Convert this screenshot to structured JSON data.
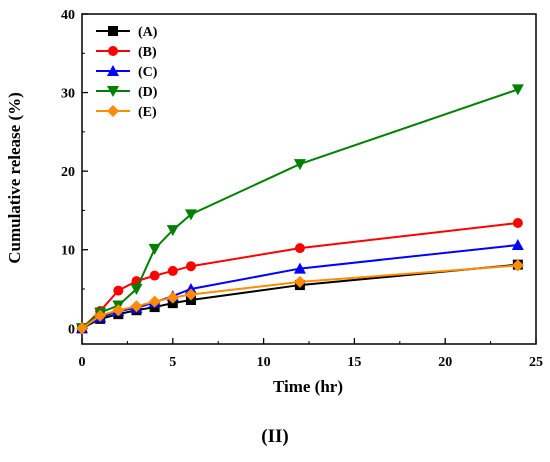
{
  "chart_data": {
    "type": "line",
    "xlabel": "Time (hr)",
    "ylabel": "Cumulative release  (%)",
    "xlim": [
      0,
      25
    ],
    "ylim": [
      -2,
      40
    ],
    "xticks": [
      0,
      5,
      10,
      15,
      20,
      25
    ],
    "yticks": [
      0,
      10,
      20,
      30,
      40
    ],
    "grid": false,
    "legend_position": "top-left",
    "series": [
      {
        "name": "(A)",
        "color": "#000000",
        "marker": "square",
        "x": [
          0,
          1,
          2,
          3,
          4,
          5,
          6,
          12,
          24
        ],
        "y": [
          0,
          1.2,
          1.8,
          2.3,
          2.7,
          3.2,
          3.6,
          5.5,
          8.1
        ]
      },
      {
        "name": "(B)",
        "color": "#ff0000",
        "marker": "circle",
        "x": [
          0,
          1,
          2,
          3,
          4,
          5,
          6,
          12,
          24
        ],
        "y": [
          0,
          2.2,
          4.8,
          6.0,
          6.7,
          7.3,
          7.9,
          10.2,
          13.4
        ]
      },
      {
        "name": "(C)",
        "color": "#0000ff",
        "marker": "triangle-up",
        "x": [
          0,
          1,
          2,
          3,
          4,
          5,
          6,
          12,
          24
        ],
        "y": [
          0,
          1.4,
          2.2,
          2.6,
          3.3,
          4.1,
          5.0,
          7.6,
          10.6
        ]
      },
      {
        "name": "(D)",
        "color": "#008000",
        "marker": "triangle-down",
        "x": [
          0,
          1,
          2,
          3,
          4,
          5,
          6,
          12,
          24
        ],
        "y": [
          0,
          2.0,
          2.9,
          5.0,
          10.1,
          12.5,
          14.5,
          20.9,
          30.4
        ]
      },
      {
        "name": "(E)",
        "color": "#ff8c00",
        "marker": "diamond",
        "x": [
          0,
          1,
          2,
          3,
          4,
          5,
          6,
          12,
          24
        ],
        "y": [
          0,
          1.6,
          2.3,
          2.8,
          3.4,
          3.9,
          4.3,
          5.9,
          8.0
        ]
      }
    ]
  },
  "caption": "(II)"
}
